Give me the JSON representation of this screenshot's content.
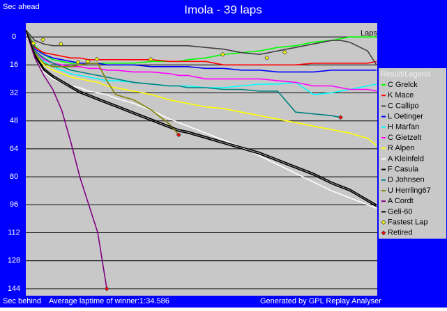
{
  "chart_data": {
    "type": "line",
    "title": "Imola - 39 laps",
    "y_label_top": "Sec ahead",
    "y_label_bottom": "Sec behind",
    "x_label": "Laps",
    "footer_left": "Average laptime of winner:1:34.586",
    "footer_right": "Generated by GPL Replay Analyser",
    "legend_title": "Result/Legend",
    "xlim": [
      0,
      39
    ],
    "ylim": [
      -8,
      148
    ],
    "y_reversed": true,
    "yticks": [
      0,
      16,
      32,
      48,
      64,
      80,
      96,
      112,
      128,
      144
    ],
    "grid": true,
    "x": [
      0,
      1,
      2,
      3,
      4,
      5,
      6,
      7,
      8,
      9,
      10,
      12,
      14,
      16,
      17,
      18,
      20,
      22,
      24,
      26,
      28,
      30,
      32,
      34,
      35,
      36,
      38,
      39
    ],
    "series": [
      {
        "name": "C Grelck",
        "color": "#00ff00",
        "values": [
          -4,
          5,
          10,
          13,
          14,
          15,
          15,
          15,
          15,
          15,
          15,
          15,
          14,
          14,
          14,
          13,
          12,
          10,
          9,
          8,
          6,
          5,
          3,
          2,
          1,
          0,
          0,
          0
        ]
      },
      {
        "name": "K Mace",
        "color": "#ff0000",
        "values": [
          -4,
          6,
          9,
          10,
          11,
          12,
          12,
          13,
          13,
          13,
          13,
          13,
          13,
          14,
          14,
          14,
          14,
          16,
          16,
          16,
          16,
          16,
          15,
          15,
          15,
          15,
          15,
          14
        ]
      },
      {
        "name": "C Callipo",
        "color": "#404040",
        "values": [
          -4,
          2,
          4,
          5,
          5,
          5,
          5,
          5,
          5,
          5,
          5,
          5,
          5,
          5,
          5,
          5,
          6,
          7,
          9,
          10,
          8,
          6,
          4,
          2,
          2,
          3,
          8,
          16
        ]
      },
      {
        "name": "L Oetinger",
        "color": "#0000ff",
        "values": [
          -4,
          7,
          10,
          12,
          13,
          14,
          15,
          15,
          15,
          16,
          16,
          16,
          17,
          17,
          17,
          17,
          18,
          18,
          19,
          19,
          20,
          20,
          20,
          19,
          19,
          19,
          19,
          19
        ]
      },
      {
        "name": "H Marfan",
        "color": "#00ffff",
        "values": [
          -4,
          9,
          14,
          17,
          19,
          21,
          22,
          23,
          24,
          25,
          25,
          26,
          27,
          28,
          28,
          28,
          29,
          29,
          28,
          27,
          27,
          26,
          33,
          32,
          31,
          30,
          28,
          27
        ]
      },
      {
        "name": "C Gietzelt",
        "color": "#ff00ff",
        "values": [
          -4,
          8,
          13,
          15,
          16,
          17,
          17,
          18,
          18,
          19,
          19,
          20,
          20,
          21,
          22,
          22,
          24,
          24,
          24,
          24,
          25,
          26,
          28,
          28,
          29,
          30,
          30,
          31
        ]
      },
      {
        "name": "R Alpen",
        "color": "#ffff00",
        "values": [
          -4,
          9,
          16,
          19,
          21,
          23,
          24,
          25,
          26,
          28,
          29,
          31,
          33,
          36,
          37,
          38,
          40,
          41,
          43,
          45,
          47,
          49,
          51,
          53,
          54,
          55,
          58,
          62
        ]
      },
      {
        "name": "A Kleinfeld",
        "color": "#ffffff",
        "values": [
          -4,
          11,
          20,
          24,
          26,
          28,
          29,
          31,
          32,
          33,
          35,
          38,
          42,
          47,
          49,
          51,
          55,
          59,
          63,
          68,
          73,
          78,
          83,
          88,
          90,
          92,
          96,
          98
        ]
      },
      {
        "name": "F Casula",
        "color": "#000000",
        "values": [
          -4,
          11,
          19,
          23,
          26,
          29,
          32,
          34,
          36,
          38,
          40,
          44,
          48,
          52,
          54,
          55,
          58,
          61,
          64,
          67,
          71,
          75,
          79,
          84,
          86,
          88,
          94,
          97
        ]
      },
      {
        "name": "D Johnsen",
        "color": "#008080",
        "values": [
          -4,
          8,
          12,
          15,
          17,
          19,
          20,
          21,
          22,
          23,
          24,
          26,
          27,
          28,
          28,
          29,
          29,
          30,
          30,
          31,
          31,
          43,
          44,
          45,
          46,
          null,
          null,
          null
        ]
      },
      {
        "name": "U Herrling67",
        "color": "#808000",
        "values": [
          -4,
          9,
          15,
          17,
          17,
          17,
          16,
          15,
          15,
          25,
          33,
          36,
          42,
          50,
          56,
          null,
          null,
          null,
          null,
          null,
          null,
          null,
          null,
          null,
          null,
          null,
          null,
          null
        ]
      },
      {
        "name": "A Cordt",
        "color": "#800080",
        "values": [
          -4,
          12,
          22,
          30,
          42,
          60,
          80,
          96,
          112,
          144,
          null,
          null,
          null,
          null,
          null,
          null,
          null,
          null,
          null,
          null,
          null,
          null,
          null,
          null,
          null,
          null,
          null,
          null
        ]
      },
      {
        "name": "Geli-60",
        "color": "#000000",
        "values": [
          -4,
          10,
          18,
          22,
          25,
          28,
          31,
          33,
          35,
          37,
          39,
          43,
          47,
          51,
          53,
          54,
          57,
          60,
          63,
          66,
          70,
          74,
          78,
          83,
          85,
          87,
          93,
          96
        ]
      }
    ],
    "markers": [
      {
        "name": "Fastest Lap",
        "color": "#ffff00",
        "x": [
          0.85,
          1.9,
          3.9,
          5.8,
          6.9,
          7.9,
          13.9,
          21.9,
          26.8,
          28.8
        ],
        "y": [
          3.6,
          1.6,
          4,
          14.4,
          14,
          12.8,
          12.8,
          10,
          12,
          8.8
        ]
      },
      {
        "name": "Retired",
        "color": "#ff0000",
        "x": [
          9,
          17,
          35
        ],
        "y": [
          144,
          56,
          46
        ]
      }
    ]
  }
}
